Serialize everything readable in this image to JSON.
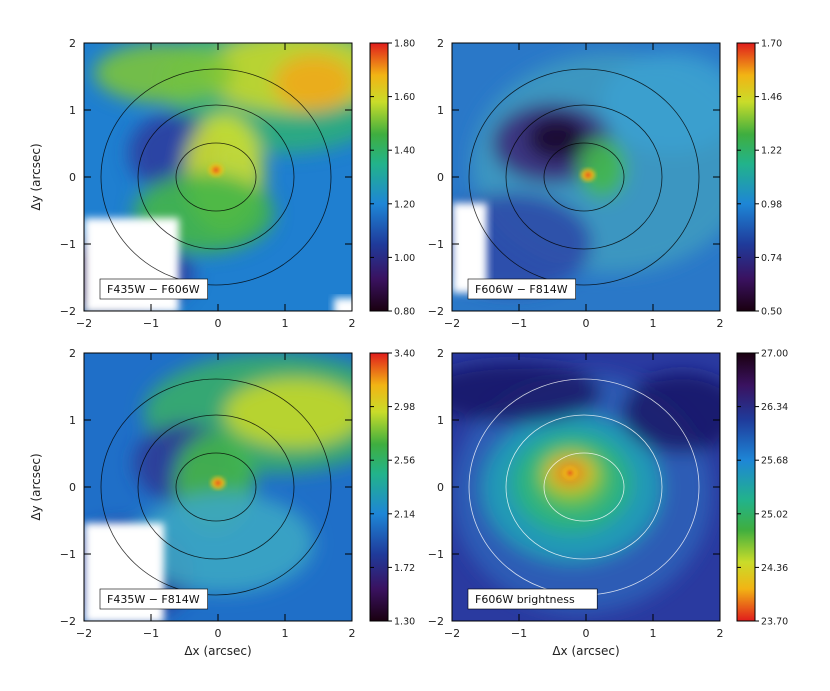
{
  "chart_data": [
    {
      "type": "heatmap",
      "panel_label": "F435W − F606W",
      "xlabel": "",
      "ylabel": "Δy (arcsec)",
      "xlim": [
        -2,
        2
      ],
      "ylim": [
        -2,
        2
      ],
      "x_ticks": [
        "−2",
        "−1",
        "0",
        "1",
        "2"
      ],
      "y_ticks": [
        "−2",
        "−1",
        "0",
        "1",
        "2"
      ],
      "colorbar": {
        "ticks": [
          "1.80",
          "1.60",
          "1.40",
          "1.20",
          "1.00",
          "0.80"
        ],
        "min": 0.8,
        "max": 1.8
      },
      "contour_color": "#000000"
    },
    {
      "type": "heatmap",
      "panel_label": "F606W − F814W",
      "xlabel": "",
      "ylabel": "",
      "xlim": [
        -2,
        2
      ],
      "ylim": [
        -2,
        2
      ],
      "x_ticks": [
        "−2",
        "−1",
        "0",
        "1",
        "2"
      ],
      "y_ticks": [
        "−2",
        "−1",
        "0",
        "1",
        "2"
      ],
      "colorbar": {
        "ticks": [
          "1.70",
          "1.46",
          "1.22",
          "0.98",
          "0.74",
          "0.50"
        ],
        "min": 0.5,
        "max": 1.7
      },
      "contour_color": "#000000"
    },
    {
      "type": "heatmap",
      "panel_label": "F435W − F814W",
      "xlabel": "Δx (arcsec)",
      "ylabel": "Δy (arcsec)",
      "xlim": [
        -2,
        2
      ],
      "ylim": [
        -2,
        2
      ],
      "x_ticks": [
        "−2",
        "−1",
        "0",
        "1",
        "2"
      ],
      "y_ticks": [
        "−2",
        "−1",
        "0",
        "1",
        "2"
      ],
      "colorbar": {
        "ticks": [
          "3.40",
          "2.98",
          "2.56",
          "2.14",
          "1.72",
          "1.30"
        ],
        "min": 1.3,
        "max": 3.4
      },
      "contour_color": "#000000"
    },
    {
      "type": "heatmap",
      "panel_label": "F606W brightness",
      "xlabel": "Δx (arcsec)",
      "ylabel": "",
      "xlim": [
        -2,
        2
      ],
      "ylim": [
        -2,
        2
      ],
      "x_ticks": [
        "−2",
        "−1",
        "0",
        "1",
        "2"
      ],
      "y_ticks": [
        "−2",
        "−1",
        "0",
        "1",
        "2"
      ],
      "colorbar": {
        "ticks": [
          "27.00",
          "26.34",
          "25.68",
          "25.02",
          "24.36",
          "23.70"
        ],
        "min": 23.7,
        "max": 27.0,
        "reversed": true
      },
      "contour_color": "#ffffff"
    }
  ]
}
